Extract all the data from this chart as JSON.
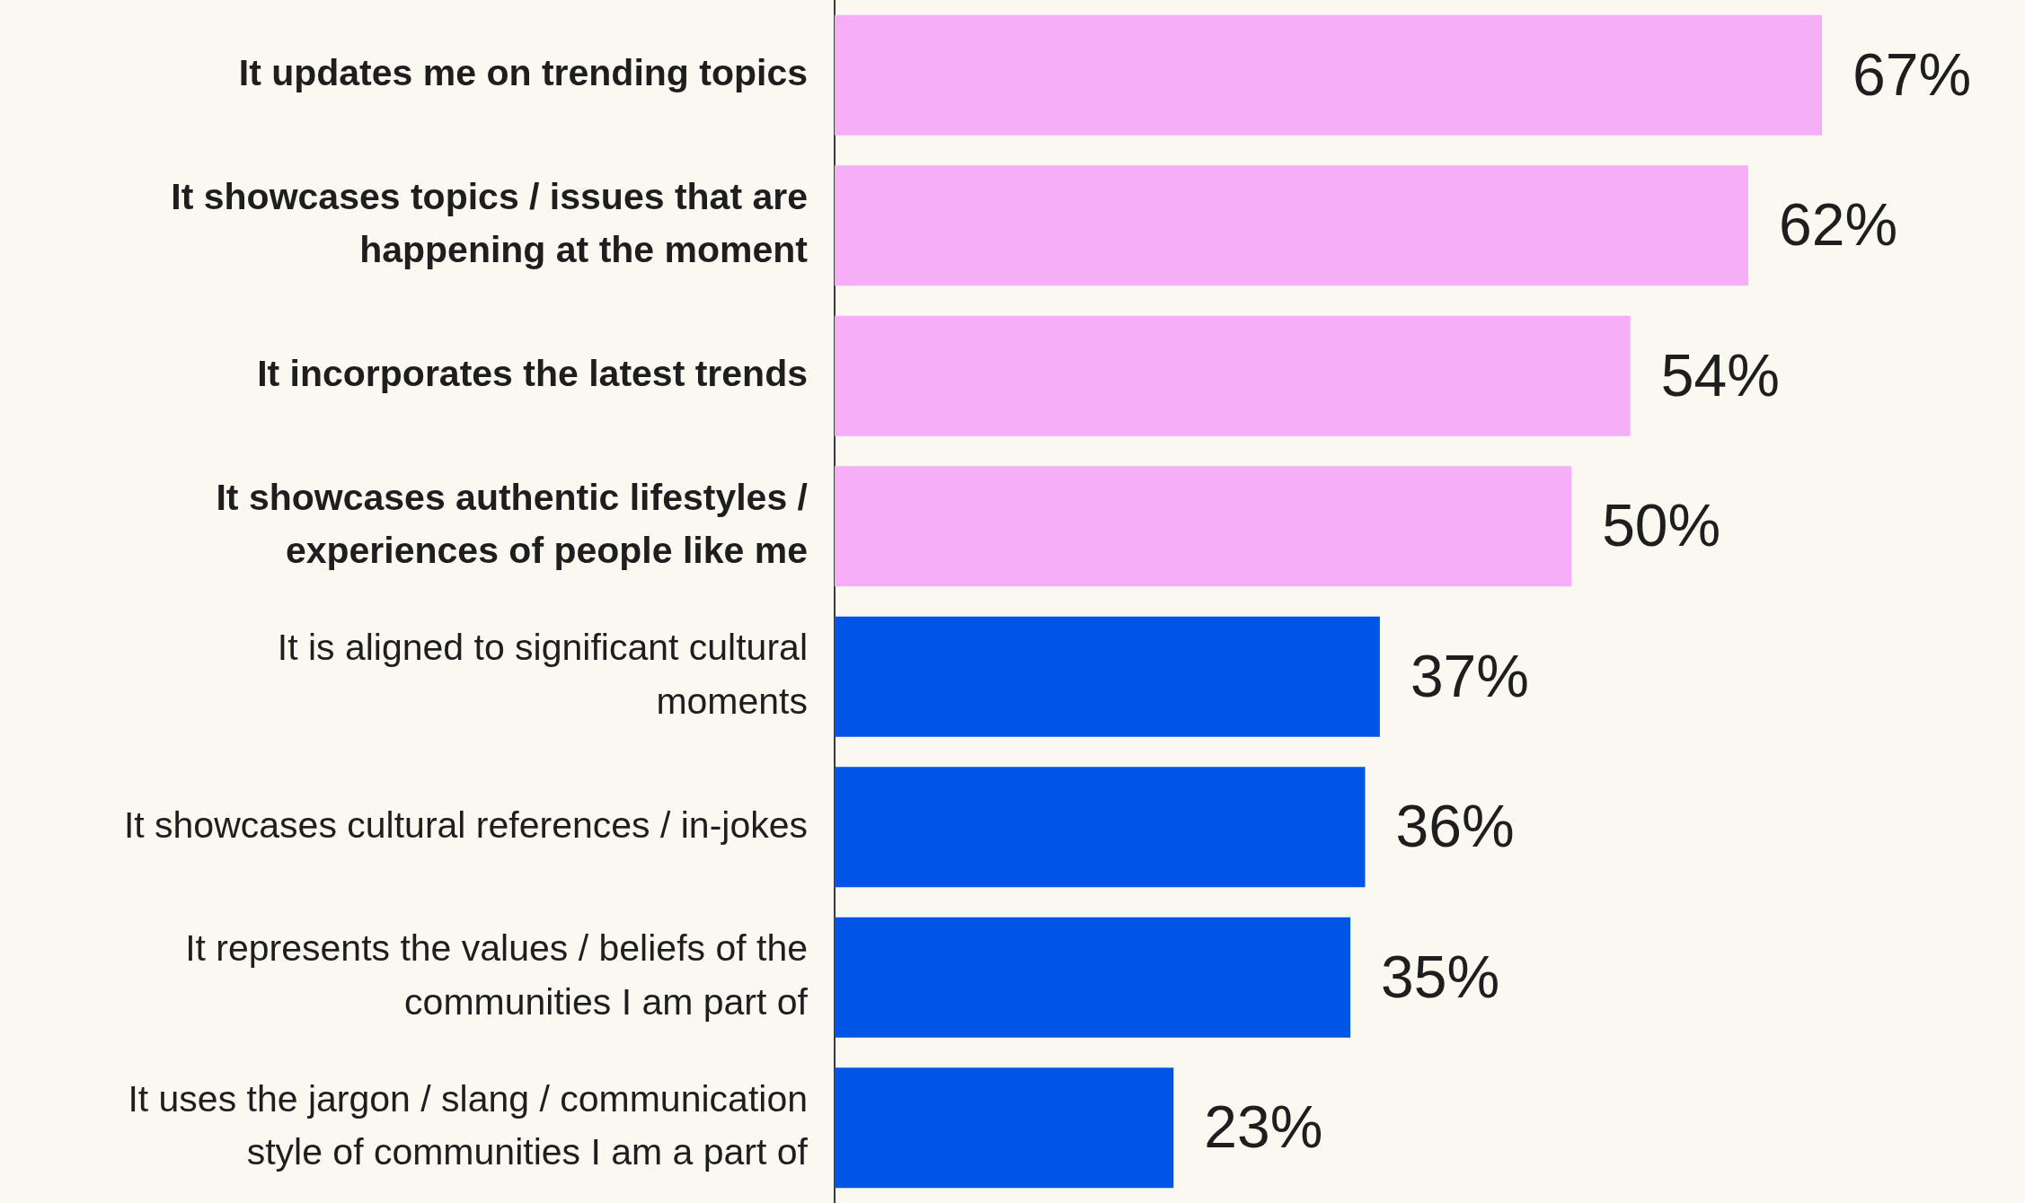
{
  "chart_data": {
    "type": "bar",
    "orientation": "horizontal",
    "categories": [
      "It updates me on trending topics",
      "It showcases topics / issues that are happening at the moment",
      "It incorporates the latest trends",
      "It showcases authentic lifestyles / experiences of people like me",
      "It is aligned to significant cultural moments",
      "It showcases cultural references / in-jokes",
      "It represents the values / beliefs of the communities I am part of",
      "It uses the jargon / slang / communication style of communities I am a part of"
    ],
    "values": [
      67,
      62,
      54,
      50,
      37,
      36,
      35,
      23
    ],
    "colors": [
      "#f6aef6",
      "#f6aef6",
      "#f6aef6",
      "#f6aef6",
      "#0055e6",
      "#0055e6",
      "#0055e6",
      "#0055e6"
    ],
    "value_labels": [
      "67%",
      "62%",
      "54%",
      "50%",
      "37%",
      "36%",
      "35%",
      "23%"
    ],
    "grid": false,
    "legend": false,
    "tick_labels": "y"
  }
}
